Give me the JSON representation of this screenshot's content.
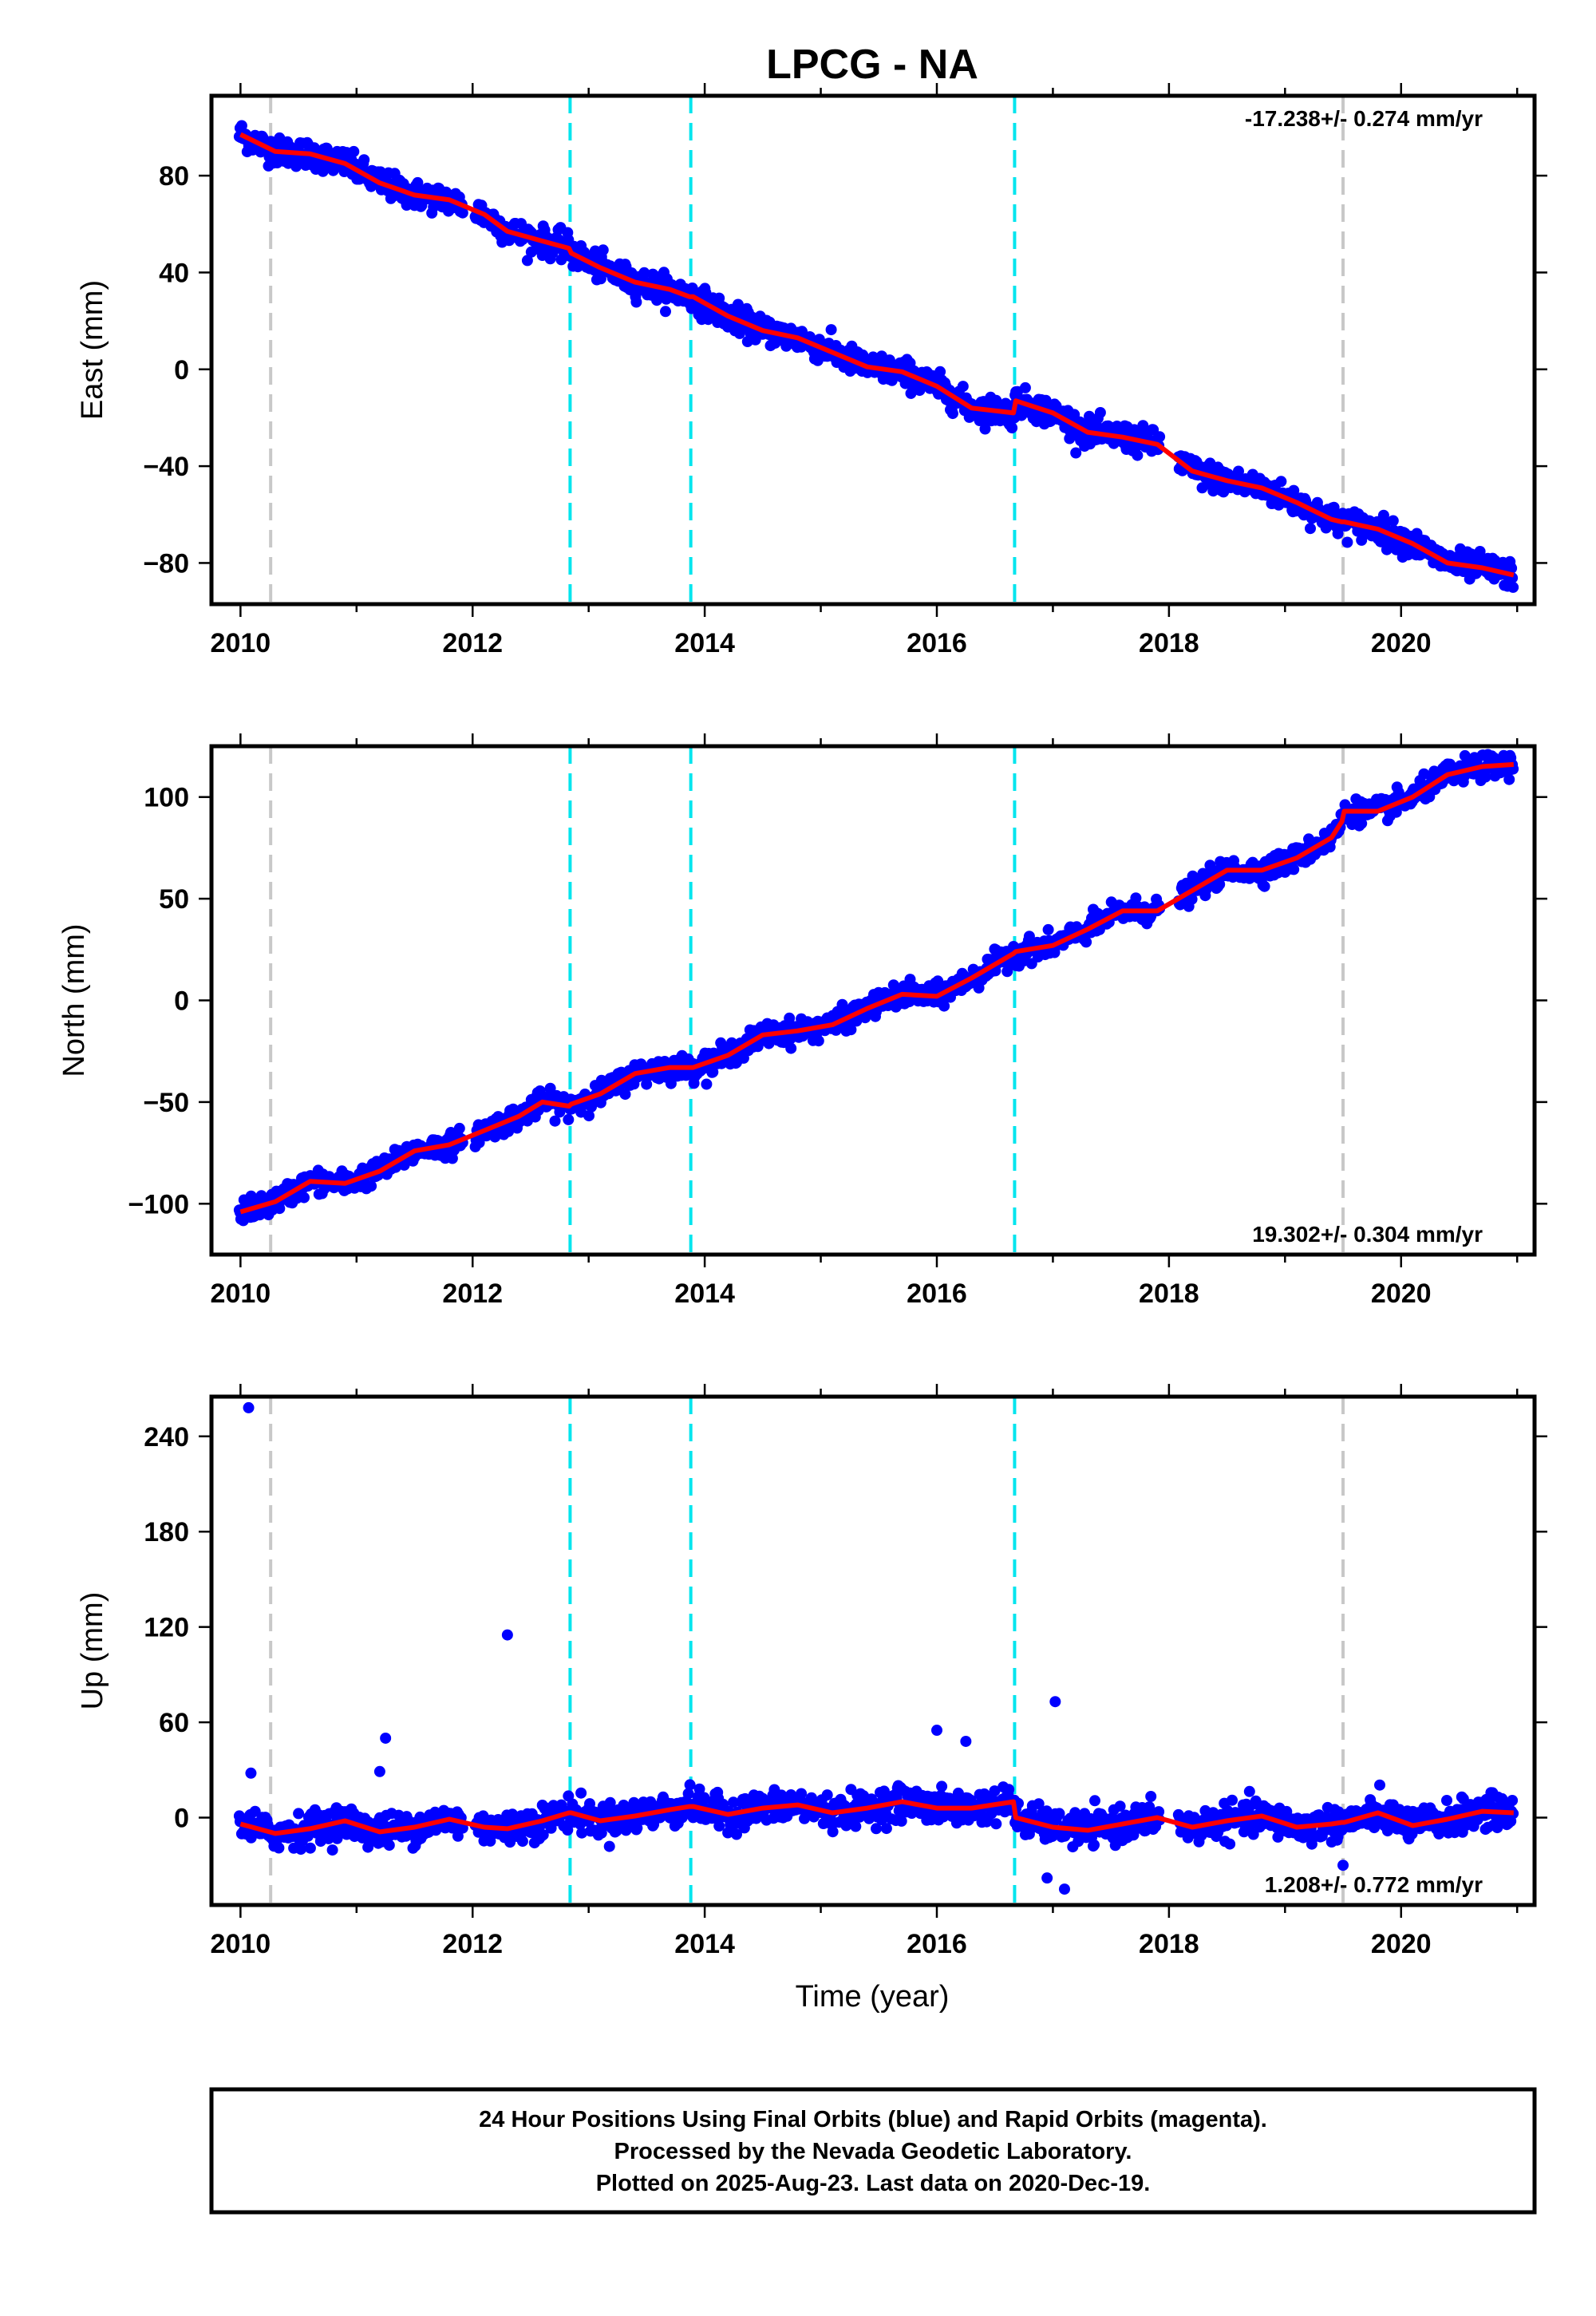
{
  "title": "LPCG - NA",
  "xlabel": "Time (year)",
  "footer": {
    "lines": [
      "24 Hour Positions Using Final Orbits (blue) and Rapid Orbits (magenta).",
      "Processed by the Nevada Geodetic Laboratory.",
      "Plotted on 2025-Aug-23. Last data on 2020-Dec-19."
    ]
  },
  "colors": {
    "points": "#0000ff",
    "fit": "#ff0000",
    "equipment_change": "#00e5ee",
    "earthquake": "#c8c8c8",
    "frame": "#000000"
  },
  "chart_data": [
    {
      "type": "scatter",
      "component": "East",
      "ylabel": "East (mm)",
      "rate_label": "-17.238+/- 0.274 mm/yr",
      "rate_position": "top-right",
      "xlim": [
        2009.75,
        2021.15
      ],
      "ylim": [
        -97,
        113
      ],
      "x_ticks": [
        2010,
        2012,
        2014,
        2016,
        2018,
        2020
      ],
      "y_ticks": [
        -80,
        -40,
        0,
        40,
        80
      ],
      "grid": false,
      "equipment_change_years": [
        2012.84,
        2013.88,
        2016.67
      ],
      "earthquake_years": [
        2010.26,
        2019.5
      ],
      "trend": {
        "x": [
          2010.0,
          2020.97
        ],
        "y": [
          98,
          -84
        ]
      },
      "series": [
        {
          "name": "fit",
          "x": [
            2010.0,
            2010.3,
            2010.6,
            2010.9,
            2011.2,
            2011.5,
            2011.8,
            2012.1,
            2012.3,
            2012.6,
            2012.83,
            2012.85,
            2013.1,
            2013.4,
            2013.7,
            2013.87,
            2013.9,
            2014.2,
            2014.5,
            2014.8,
            2015.1,
            2015.4,
            2015.7,
            2016.0,
            2016.3,
            2016.66,
            2016.68,
            2017.0,
            2017.3,
            2017.6,
            2017.9,
            2018.2,
            2018.5,
            2018.8,
            2019.1,
            2019.4,
            2019.49,
            2019.51,
            2019.8,
            2020.1,
            2020.4,
            2020.7,
            2020.97
          ],
          "y": [
            97,
            90,
            89,
            85,
            77,
            72,
            70,
            64,
            57,
            53,
            50,
            48,
            42,
            36,
            33,
            30,
            30,
            22,
            16,
            13,
            7,
            1,
            -1,
            -7,
            -16,
            -18,
            -13,
            -18,
            -26,
            -28,
            -31,
            -42,
            -46,
            -49,
            -55,
            -62,
            -63,
            -63,
            -66,
            -72,
            -80,
            -82,
            -85
          ]
        }
      ]
    },
    {
      "type": "scatter",
      "component": "North",
      "ylabel": "North (mm)",
      "rate_label": "19.302+/- 0.304 mm/yr",
      "rate_position": "bottom-right",
      "xlim": [
        2009.75,
        2021.15
      ],
      "ylim": [
        -125,
        125
      ],
      "x_ticks": [
        2010,
        2012,
        2014,
        2016,
        2018,
        2020
      ],
      "y_ticks": [
        -100,
        -50,
        0,
        50,
        100
      ],
      "grid": false,
      "equipment_change_years": [
        2012.84,
        2013.88,
        2016.67
      ],
      "earthquake_years": [
        2010.26,
        2019.5
      ],
      "trend": {
        "x": [
          2010.0,
          2020.97
        ],
        "y": [
          -104,
          116
        ]
      },
      "series": [
        {
          "name": "fit",
          "x": [
            2010.0,
            2010.3,
            2010.6,
            2010.9,
            2011.2,
            2011.5,
            2011.8,
            2012.1,
            2012.4,
            2012.6,
            2012.83,
            2012.85,
            2013.1,
            2013.4,
            2013.7,
            2013.87,
            2013.9,
            2014.2,
            2014.5,
            2014.8,
            2015.1,
            2015.4,
            2015.7,
            2016.0,
            2016.3,
            2016.66,
            2016.68,
            2017.0,
            2017.3,
            2017.6,
            2017.9,
            2018.2,
            2018.5,
            2018.8,
            2019.1,
            2019.4,
            2019.49,
            2019.51,
            2019.8,
            2020.1,
            2020.4,
            2020.7,
            2020.97
          ],
          "y": [
            -104,
            -99,
            -89,
            -90,
            -84,
            -74,
            -71,
            -64,
            -57,
            -50,
            -52,
            -51,
            -46,
            -36,
            -33,
            -33,
            -33,
            -27,
            -17,
            -15,
            -12,
            -4,
            3,
            2,
            11,
            23,
            24,
            27,
            35,
            44,
            44,
            54,
            64,
            64,
            70,
            80,
            88,
            93,
            93,
            100,
            111,
            115,
            116
          ]
        }
      ]
    },
    {
      "type": "scatter",
      "component": "Up",
      "ylabel": "Up (mm)",
      "rate_label": "1.208+/- 0.772 mm/yr",
      "rate_position": "bottom-right",
      "xlim": [
        2009.75,
        2021.15
      ],
      "ylim": [
        -55,
        265
      ],
      "x_ticks": [
        2010,
        2012,
        2014,
        2016,
        2018,
        2020
      ],
      "y_ticks": [
        0,
        60,
        120,
        180,
        240
      ],
      "grid": false,
      "equipment_change_years": [
        2012.84,
        2013.88,
        2016.67
      ],
      "earthquake_years": [
        2010.26,
        2019.5
      ],
      "trend": {
        "x": [
          2010.0,
          2020.97
        ],
        "y": [
          -3,
          10
        ]
      },
      "outliers": {
        "x": [
          2010.07,
          2010.09,
          2011.2,
          2011.25,
          2012.3,
          2016.0,
          2016.25,
          2017.02,
          2017.1,
          2016.95,
          2019.5
        ],
        "y": [
          258,
          28,
          29,
          50,
          115,
          55,
          48,
          73,
          -45,
          -38,
          -30
        ]
      },
      "series": [
        {
          "name": "fit",
          "x": [
            2010.0,
            2010.3,
            2010.6,
            2010.9,
            2011.2,
            2011.5,
            2011.8,
            2012.1,
            2012.3,
            2012.6,
            2012.83,
            2012.85,
            2013.1,
            2013.4,
            2013.7,
            2013.87,
            2013.9,
            2014.2,
            2014.5,
            2014.8,
            2015.1,
            2015.4,
            2015.7,
            2016.0,
            2016.3,
            2016.66,
            2016.68,
            2017.0,
            2017.3,
            2017.6,
            2017.9,
            2018.2,
            2018.5,
            2018.8,
            2019.1,
            2019.4,
            2019.49,
            2019.51,
            2019.8,
            2020.1,
            2020.4,
            2020.7,
            2020.97
          ],
          "y": [
            -4,
            -10,
            -7,
            -2,
            -9,
            -6,
            -1,
            -6,
            -7,
            -2,
            3,
            3,
            -2,
            1,
            5,
            7,
            7,
            2,
            6,
            8,
            3,
            6,
            10,
            6,
            6,
            10,
            0,
            -6,
            -8,
            -4,
            0,
            -6,
            -2,
            1,
            -6,
            -4,
            -3,
            -3,
            3,
            -5,
            -1,
            4,
            3
          ]
        }
      ]
    }
  ]
}
